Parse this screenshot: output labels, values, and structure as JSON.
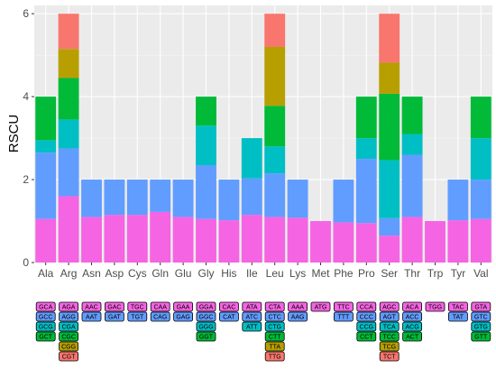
{
  "colors": {
    "level1": "#F564E3",
    "level2": "#619CFF",
    "level3": "#00BFC4",
    "level4": "#00BA38",
    "level5": "#B79F00",
    "level6": "#F8766D",
    "panel": "#EBEBEB",
    "grid_major": "#FFFFFF",
    "grid_minor": "#F5F5F5"
  },
  "chart_data": {
    "type": "bar",
    "stacked": true,
    "ylabel": "RSCU",
    "ylim": [
      0,
      6.2
    ],
    "yticks": [
      0,
      2,
      4,
      6
    ],
    "grid": true,
    "categories": [
      "Ala",
      "Arg",
      "Asn",
      "Asp",
      "Cys",
      "Gln",
      "Glu",
      "Gly",
      "His",
      "Ile",
      "Leu",
      "Lys",
      "Met",
      "Phe",
      "Pro",
      "Ser",
      "Thr",
      "Trp",
      "Tyr",
      "Val"
    ],
    "bars": [
      {
        "aa": "Ala",
        "segments": [
          1.05,
          1.6,
          0.3,
          1.05
        ],
        "codons": [
          "GCA",
          "GCC",
          "GCG",
          "GCT"
        ]
      },
      {
        "aa": "Arg",
        "segments": [
          1.6,
          1.15,
          0.7,
          1.0,
          0.7,
          0.85
        ],
        "codons": [
          "AGA",
          "AGG",
          "CGA",
          "CGC",
          "CGG",
          "CGT"
        ]
      },
      {
        "aa": "Asn",
        "segments": [
          1.1,
          0.9
        ],
        "codons": [
          "AAC",
          "AAT"
        ]
      },
      {
        "aa": "Asp",
        "segments": [
          1.15,
          0.85
        ],
        "codons": [
          "GAC",
          "GAT"
        ]
      },
      {
        "aa": "Cys",
        "segments": [
          1.15,
          0.85
        ],
        "codons": [
          "TGC",
          "TGT"
        ]
      },
      {
        "aa": "Gln",
        "segments": [
          1.22,
          0.78
        ],
        "codons": [
          "CAA",
          "CAG"
        ]
      },
      {
        "aa": "Glu",
        "segments": [
          1.1,
          0.9
        ],
        "codons": [
          "GAA",
          "GAG"
        ]
      },
      {
        "aa": "Gly",
        "segments": [
          1.05,
          1.3,
          0.95,
          0.7
        ],
        "codons": [
          "GGA",
          "GGC",
          "GGG",
          "GGT"
        ]
      },
      {
        "aa": "His",
        "segments": [
          1.02,
          0.98
        ],
        "codons": [
          "CAC",
          "CAT"
        ]
      },
      {
        "aa": "Ile",
        "segments": [
          1.15,
          0.88,
          0.97
        ],
        "codons": [
          "ATA",
          "ATC",
          "ATT"
        ]
      },
      {
        "aa": "Leu",
        "segments": [
          1.1,
          1.05,
          0.65,
          0.98,
          1.42,
          0.8
        ],
        "codons": [
          "CTA",
          "CTC",
          "CTG",
          "CTT",
          "TTA",
          "TTG"
        ]
      },
      {
        "aa": "Lys",
        "segments": [
          1.08,
          0.92
        ],
        "codons": [
          "AAA",
          "AAG"
        ]
      },
      {
        "aa": "Met",
        "segments": [
          1.0
        ],
        "codons": [
          "ATG"
        ]
      },
      {
        "aa": "Phe",
        "segments": [
          0.97,
          1.03
        ],
        "codons": [
          "TTC",
          "TTT"
        ]
      },
      {
        "aa": "Pro",
        "segments": [
          0.95,
          1.55,
          0.5,
          1.0
        ],
        "codons": [
          "CCA",
          "CCC",
          "CCG",
          "CCT"
        ]
      },
      {
        "aa": "Ser",
        "segments": [
          0.65,
          0.42,
          1.4,
          1.6,
          0.75,
          1.18
        ],
        "codons": [
          "AGC",
          "AGT",
          "TCA",
          "TCC",
          "TCG",
          "TCT"
        ]
      },
      {
        "aa": "Thr",
        "segments": [
          1.1,
          1.5,
          0.5,
          0.9
        ],
        "codons": [
          "ACA",
          "ACC",
          "ACG",
          "ACT"
        ]
      },
      {
        "aa": "Trp",
        "segments": [
          1.0
        ],
        "codons": [
          "TGG"
        ]
      },
      {
        "aa": "Tyr",
        "segments": [
          1.02,
          0.98
        ],
        "codons": [
          "TAC",
          "TAT"
        ]
      },
      {
        "aa": "Val",
        "segments": [
          1.05,
          0.95,
          1.0,
          1.0
        ],
        "codons": [
          "GTA",
          "GTC",
          "GTG",
          "GTT"
        ]
      }
    ]
  }
}
